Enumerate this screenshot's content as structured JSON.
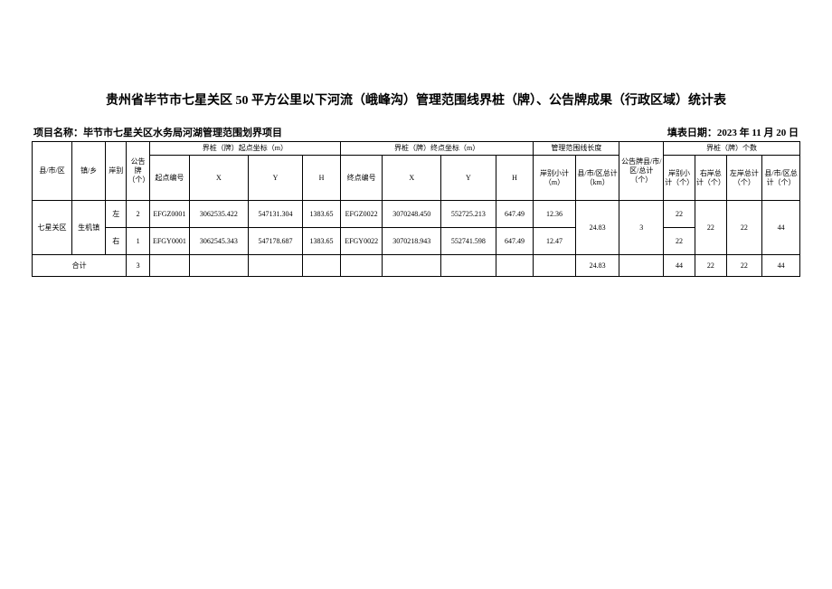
{
  "doc": {
    "title": "贵州省毕节市七星关区 50 平方公里以下河流（峨峰沟）管理范围线界桩（牌）、公告牌成果（行政区域）统计表",
    "project_label": "项目名称：",
    "project_name": "毕节市七星关区水务局河湖管理范围划界项目",
    "date_label": "填表日期：",
    "date_value": "2023 年 11 月 20 日"
  },
  "headers": {
    "county": "县/市/区",
    "town": "镇/乡",
    "bank": "岸别",
    "board": "公告牌（个）",
    "start_group": "界桩（牌）起点坐标（m）",
    "end_group": "界桩（牌）终点坐标（m）",
    "len_group": "管理范围线长度",
    "board_county": "公告牌县/市/区/总计（个）",
    "count_group": "界桩（牌）个数",
    "start_id": "起点编号",
    "end_id": "终点编号",
    "x": "X",
    "y": "Y",
    "h": "H",
    "bank_sub": "岸别小计（m）",
    "county_total_km": "县/市/区总计（km）",
    "bank_sub_cnt": "岸别小计（个）",
    "right_cnt": "右岸总计（个）",
    "left_cnt": "左岸总计（个）",
    "county_cnt": "县/市/区总计（个）"
  },
  "rows": [
    {
      "county": "七星关区",
      "town": "生机镇",
      "bank": "左",
      "board": "2",
      "start_id": "EFGZ0001",
      "sx": "3062535.422",
      "sy": "547131.304",
      "sh": "1383.65",
      "end_id": "EFGZ0022",
      "ex": "3070248.450",
      "ey": "552725.213",
      "eh": "647.49",
      "bank_len": "12.36",
      "county_km": "24.83",
      "board_total": "3",
      "bank_cnt": "22",
      "right_total": "22",
      "left_total": "22",
      "county_total": "44"
    },
    {
      "bank": "右",
      "board": "1",
      "start_id": "EFGY0001",
      "sx": "3062545.343",
      "sy": "547178.687",
      "sh": "1383.65",
      "end_id": "EFGY0022",
      "ex": "3070218.943",
      "ey": "552741.598",
      "eh": "647.49",
      "bank_len": "12.47",
      "bank_cnt": "22"
    }
  ],
  "sum": {
    "label": "合计",
    "board": "3",
    "county_km": "24.83",
    "bank_cnt": "44",
    "right_total": "22",
    "left_total": "22",
    "county_total": "44"
  },
  "widths": {
    "c1": "38",
    "c2": "32",
    "c3": "20",
    "c4": "22",
    "c5": "38",
    "c6": "56",
    "c7": "52",
    "c8": "36",
    "c9": "40",
    "c10": "56",
    "c11": "52",
    "c12": "36",
    "c13": "40",
    "c14": "42",
    "c15": "42",
    "c16": "30",
    "c17": "30",
    "c18": "34",
    "c19": "36"
  }
}
